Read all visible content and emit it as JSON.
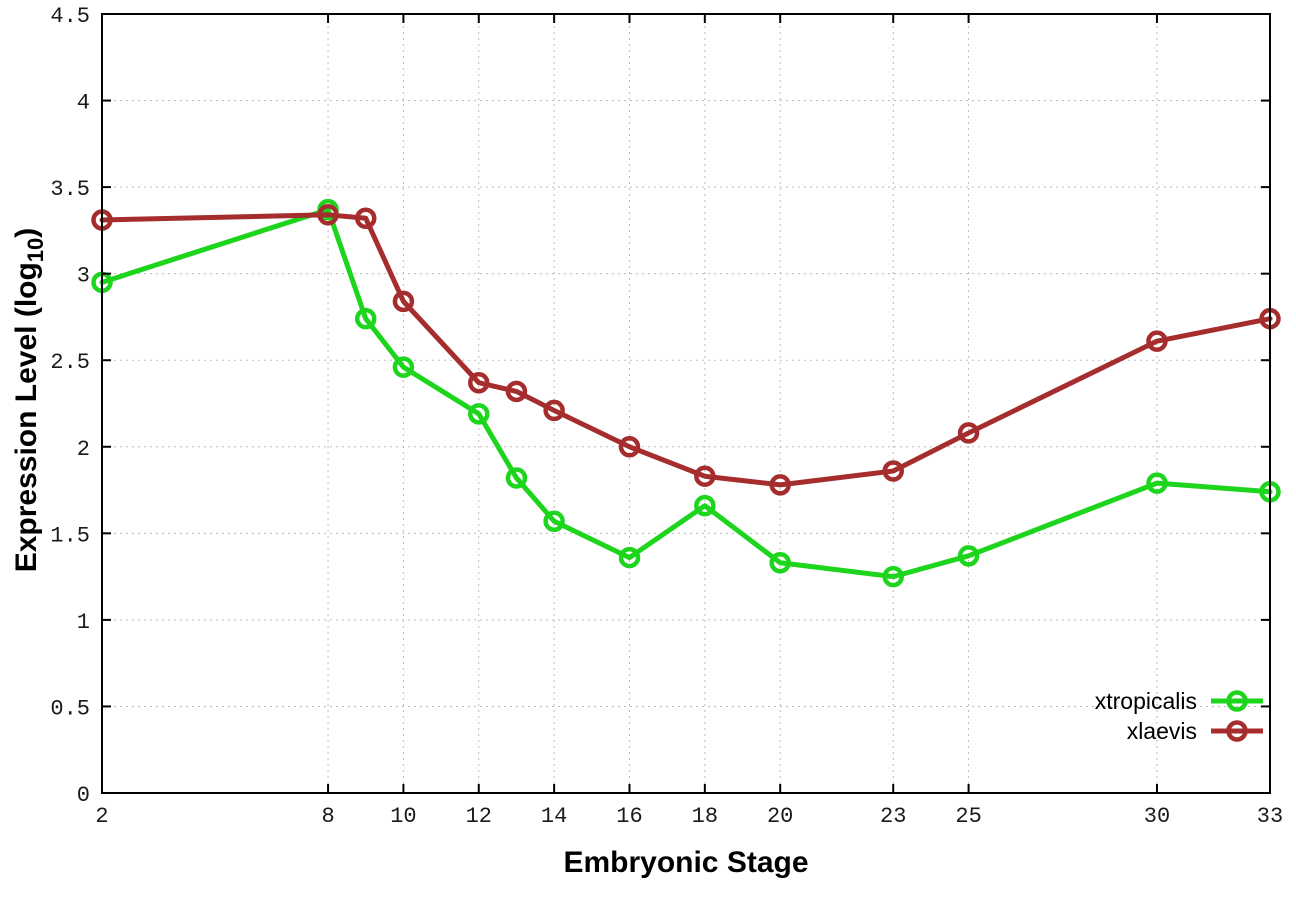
{
  "figure": {
    "background": "#ffffff",
    "axis_color": "#000000",
    "grid_color": "#bdbdbd"
  },
  "chart_data": {
    "type": "line",
    "title": "",
    "xlabel": "Embryonic Stage",
    "ylabel": "Expression Level (log10)",
    "ylabel_parts": {
      "main": "Expression Level (log",
      "sub": "10",
      "end": ")"
    },
    "x": [
      2,
      8,
      9,
      10,
      12,
      13,
      14,
      16,
      18,
      20,
      23,
      25,
      30,
      33
    ],
    "series": [
      {
        "name": "xtropicalis",
        "color": "#1cd51c",
        "values": [
          2.95,
          3.37,
          2.74,
          2.46,
          2.19,
          1.82,
          1.57,
          1.36,
          1.66,
          1.33,
          1.25,
          1.37,
          1.79,
          1.74
        ]
      },
      {
        "name": "xlaevis",
        "color": "#a52d2d",
        "values": [
          3.31,
          3.34,
          3.32,
          2.84,
          2.37,
          2.32,
          2.21,
          2.0,
          1.83,
          1.78,
          1.86,
          2.08,
          2.61,
          2.74
        ]
      }
    ],
    "xlim": [
      2,
      33
    ],
    "ylim": [
      0,
      4.5
    ],
    "x_ticks": {
      "values": [
        2,
        8,
        10,
        12,
        14,
        16,
        18,
        20,
        23,
        25,
        30,
        33
      ],
      "labels": [
        "2",
        "8",
        "10",
        "12",
        "14",
        "16",
        "18",
        "20",
        "23",
        "25",
        "30",
        "33"
      ]
    },
    "y_ticks": {
      "values": [
        0,
        0.5,
        1,
        1.5,
        2,
        2.5,
        3,
        3.5,
        4,
        4.5
      ],
      "labels": [
        "0",
        "0.5",
        "1",
        "1.5",
        "2",
        "2.5",
        "3",
        "3.5",
        "4",
        "4.5"
      ]
    },
    "grid": true,
    "legend_position": "bottom-right",
    "legend": [
      "xtropicalis",
      "xlaevis"
    ]
  }
}
